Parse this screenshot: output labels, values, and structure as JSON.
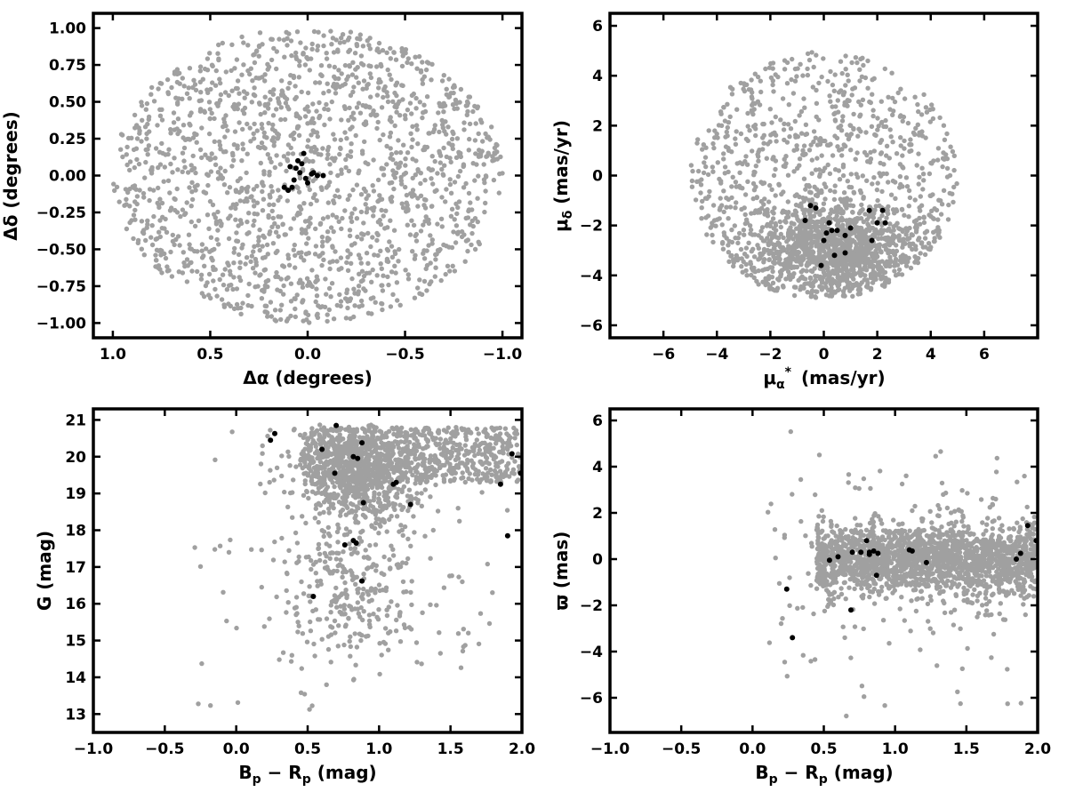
{
  "colors": {
    "field": "#a0a0a0",
    "members": "#000000",
    "axes": "#000000"
  },
  "chart_data": [
    {
      "id": "sky",
      "type": "scatter",
      "xlabel": "Δα (degrees)",
      "ylabel": "Δδ (degrees)",
      "xlim": [
        1.1,
        -1.1
      ],
      "ylim": [
        -1.1,
        1.1
      ],
      "x_reversed": true,
      "xticks": [
        1.0,
        0.5,
        0.0,
        -0.5,
        -1.0
      ],
      "xtick_labels": [
        "1.0",
        "0.5",
        "0.0",
        "−0.5",
        "−1.0"
      ],
      "yticks": [
        1.0,
        0.75,
        0.5,
        0.25,
        0.0,
        -0.25,
        -0.5,
        -0.75,
        -1.0
      ],
      "ytick_labels": [
        "1.00",
        "0.75",
        "0.50",
        "0.25",
        "0.00",
        "−0.25",
        "−0.50",
        "−0.75",
        "−1.00"
      ],
      "field_sample": {
        "shape": "disk",
        "radius": 1.0,
        "count": 1700
      },
      "members": {
        "x": [
          0.02,
          0.05,
          -0.03,
          0.08,
          0.0,
          0.1,
          0.12,
          -0.05,
          0.03,
          0.07,
          0.06,
          -0.02,
          0.04,
          0.01,
          -0.08,
          0.09
        ],
        "y": [
          0.15,
          0.1,
          0.02,
          -0.08,
          -0.05,
          -0.1,
          -0.08,
          0.0,
          0.08,
          -0.03,
          0.05,
          0.01,
          0.02,
          -0.02,
          0.0,
          0.06
        ]
      }
    },
    {
      "id": "pm",
      "type": "scatter",
      "xlabel": "μα* (mas/yr)",
      "ylabel": "μδ (mas/yr)",
      "xlim": [
        -8,
        8
      ],
      "ylim": [
        -6.5,
        6.5
      ],
      "xticks": [
        -6,
        -4,
        -2,
        0,
        2,
        4,
        6
      ],
      "xtick_labels": [
        "−6",
        "−4",
        "−2",
        "0",
        "2",
        "4",
        "6"
      ],
      "yticks": [
        -6,
        -4,
        -2,
        0,
        2,
        4,
        6
      ],
      "ytick_labels": [
        "−6",
        "−4",
        "−2",
        "0",
        "2",
        "4",
        "6"
      ],
      "field_sample": {
        "shape": "disk",
        "center": [
          0,
          0
        ],
        "radius": 5.0,
        "ymin": -5.0,
        "dense_center": [
          0.5,
          -3.0
        ],
        "count": 2000
      },
      "members": {
        "x": [
          -0.5,
          -0.3,
          0.2,
          0.5,
          0.8,
          1.0,
          1.7,
          2.0,
          2.2,
          0.0,
          0.4,
          0.8,
          -0.1,
          0.3,
          1.8,
          2.3,
          -0.7,
          0.1
        ],
        "y": [
          -1.2,
          -1.3,
          -1.9,
          -2.2,
          -2.4,
          -2.1,
          -1.4,
          -1.9,
          -1.4,
          -2.6,
          -3.2,
          -3.1,
          -3.6,
          -2.2,
          -2.6,
          -1.9,
          -1.8,
          -2.3
        ]
      }
    },
    {
      "id": "cmd",
      "type": "scatter",
      "xlabel": "Bp − Rp (mag)",
      "ylabel": "G (mag)",
      "xlim": [
        -1.0,
        2.0
      ],
      "ylim": [
        12.5,
        21.3
      ],
      "xticks": [
        -1.0,
        -0.5,
        0.0,
        0.5,
        1.0,
        1.5,
        2.0
      ],
      "xtick_labels": [
        "−1.0",
        "−0.5",
        "0.0",
        "0.5",
        "1.0",
        "1.5",
        "2.0"
      ],
      "yticks": [
        13,
        14,
        15,
        16,
        17,
        18,
        19,
        20,
        21
      ],
      "ytick_labels": [
        "13",
        "14",
        "15",
        "16",
        "17",
        "18",
        "19",
        "20",
        "21"
      ],
      "field_sample": {
        "count": 1900
      },
      "members": {
        "x": [
          0.24,
          0.27,
          0.6,
          0.7,
          0.69,
          0.82,
          0.85,
          0.88,
          1.1,
          1.12,
          1.22,
          0.89,
          0.76,
          0.82,
          0.84,
          0.88,
          0.54,
          1.85,
          1.9,
          1.93,
          1.99
        ],
        "y": [
          20.45,
          20.63,
          20.2,
          20.85,
          19.55,
          20.0,
          19.95,
          20.38,
          19.25,
          19.3,
          18.7,
          18.75,
          17.6,
          17.72,
          17.65,
          16.62,
          16.2,
          19.25,
          17.85,
          20.08,
          19.55
        ]
      }
    },
    {
      "id": "parallax",
      "type": "scatter",
      "xlabel": "Bp − Rp (mag)",
      "ylabel": "ϖ (mas)",
      "xlim": [
        -1.0,
        2.0
      ],
      "ylim": [
        -7.5,
        6.5
      ],
      "xticks": [
        -1.0,
        -0.5,
        0.0,
        0.5,
        1.0,
        1.5,
        2.0
      ],
      "xtick_labels": [
        "−1.0",
        "−0.5",
        "0.0",
        "0.5",
        "1.0",
        "1.5",
        "2.0"
      ],
      "yticks": [
        -6,
        -4,
        -2,
        0,
        2,
        4,
        6
      ],
      "ytick_labels": [
        "−6",
        "−4",
        "−2",
        "0",
        "2",
        "4",
        "6"
      ],
      "field_sample": {
        "count": 2000
      },
      "members": {
        "x": [
          0.24,
          0.28,
          0.54,
          0.6,
          0.7,
          0.69,
          0.76,
          0.8,
          0.82,
          0.85,
          0.87,
          0.88,
          1.1,
          1.12,
          1.22,
          1.85,
          1.88,
          1.93,
          1.99,
          0.82
        ],
        "y": [
          -1.3,
          -3.4,
          -0.05,
          0.1,
          0.3,
          -2.2,
          0.3,
          0.8,
          0.2,
          0.35,
          -0.7,
          0.25,
          0.4,
          0.35,
          -0.15,
          0.0,
          0.25,
          1.45,
          0.8,
          0.3
        ]
      }
    }
  ]
}
